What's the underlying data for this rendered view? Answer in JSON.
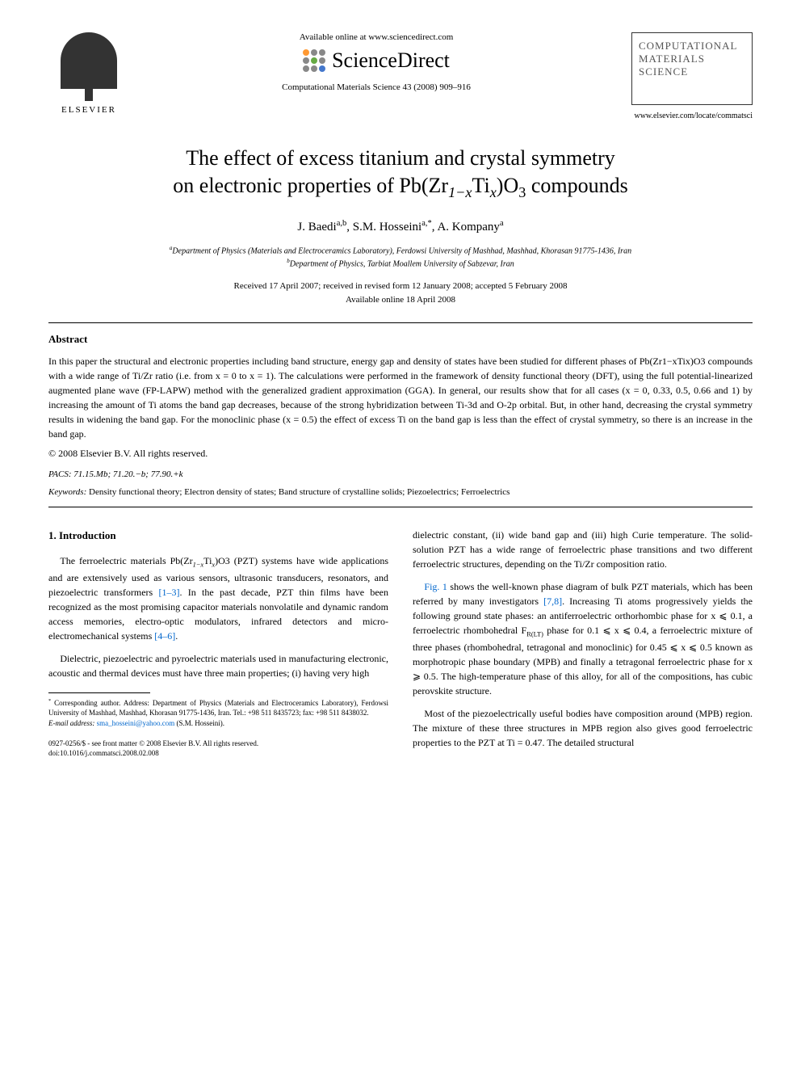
{
  "header": {
    "elsevier": "ELSEVIER",
    "available": "Available online at www.sciencedirect.com",
    "sciencedirect": "ScienceDirect",
    "journal_ref": "Computational Materials Science 43 (2008) 909–916",
    "journal_name_l1": "COMPUTATIONAL",
    "journal_name_l2": "MATERIALS",
    "journal_name_l3": "SCIENCE",
    "journal_url": "www.elsevier.com/locate/commatsci"
  },
  "title_l1": "The effect of excess titanium and crystal symmetry",
  "title_l2_pre": "on electronic properties of Pb(Zr",
  "title_l2_sub1": "1−x",
  "title_l2_mid": "Ti",
  "title_l2_sub2": "x",
  "title_l2_post": ")O",
  "title_l2_sub3": "3",
  "title_l2_end": " compounds",
  "authors": {
    "a1": "J. Baedi",
    "a1_sup": "a,b",
    "a2": "S.M. Hosseini",
    "a2_sup": "a,*",
    "a3": "A. Kompany",
    "a3_sup": "a"
  },
  "affiliations": {
    "a": "Department of Physics (Materials and Electroceramics Laboratory), Ferdowsi University of Mashhad, Mashhad, Khorasan 91775-1436, Iran",
    "b": "Department of Physics, Tarbiat Moallem University of Sabzevar, Iran"
  },
  "dates": {
    "received": "Received 17 April 2007; received in revised form 12 January 2008; accepted 5 February 2008",
    "available": "Available online 18 April 2008"
  },
  "abstract": {
    "heading": "Abstract",
    "text": "In this paper the structural and electronic properties including band structure, energy gap and density of states have been studied for different phases of Pb(Zr1−xTix)O3 compounds with a wide range of Ti/Zr ratio (i.e. from x = 0 to x = 1). The calculations were performed in the framework of density functional theory (DFT), using the full potential-linearized augmented plane wave (FP-LAPW) method with the generalized gradient approximation (GGA). In general, our results show that for all cases (x = 0, 0.33, 0.5, 0.66 and 1) by increasing the amount of Ti atoms the band gap decreases, because of the strong hybridization between Ti-3d and O-2p orbital. But, in other hand, decreasing the crystal symmetry results in widening the band gap. For the monoclinic phase (x = 0.5) the effect of excess Ti on the band gap is less than the effect of crystal symmetry, so there is an increase in the band gap.",
    "copyright": "© 2008 Elsevier B.V. All rights reserved."
  },
  "pacs": {
    "label": "PACS:",
    "codes": "71.15.Mb; 71.20.−b; 77.90.+k"
  },
  "keywords": {
    "label": "Keywords:",
    "text": "Density functional theory; Electron density of states; Band structure of crystalline solids; Piezoelectrics; Ferroelectrics"
  },
  "intro": {
    "heading": "1. Introduction",
    "p1_pre": "The ferroelectric materials Pb(Zr",
    "p1_post": ")O3 (PZT) systems have wide applications and are extensively used as various sensors, ultrasonic transducers, resonators, and piezoelectric transformers ",
    "p1_ref": "[1–3]",
    "p1_cont": ". In the past decade, PZT thin films have been recognized as the most promising capacitor materials nonvolatile and dynamic random access memories, electro-optic modulators, infrared detectors and micro-electromechanical systems ",
    "p1_ref2": "[4–6]",
    "p1_end": ".",
    "p2": "Dielectric, piezoelectric and pyroelectric materials used in manufacturing electronic, acoustic and thermal devices must have three main properties; (i) having very high",
    "col2_p1": "dielectric constant, (ii) wide band gap and (iii) high Curie temperature. The solid-solution PZT has a wide range of ferroelectric phase transitions and two different ferroelectric structures, depending on the Ti/Zr composition ratio.",
    "col2_p2_ref": "Fig. 1",
    "col2_p2_a": " shows the well-known phase diagram of bulk PZT materials, which has been referred by many investigators ",
    "col2_p2_ref2": "[7,8]",
    "col2_p2_b": ". Increasing Ti atoms progressively yields the following ground state phases: an antiferroelectric orthorhombic phase for x ⩽ 0.1, a ferroelectric rhombohedral F",
    "col2_p2_sub": "R(LT)",
    "col2_p2_c": " phase for 0.1 ⩽ x ⩽ 0.4, a ferroelectric mixture of three phases (rhombohedral, tetragonal and monoclinic) for 0.45 ⩽ x ⩽ 0.5 known as morphotropic phase boundary (MPB) and finally a tetragonal ferroelectric phase for x ⩾ 0.5. The high-temperature phase of this alloy, for all of the compositions, has cubic perovskite structure.",
    "col2_p3": "Most of the piezoelectrically useful bodies have composition around (MPB) region. The mixture of these three structures in MPB region also gives good ferroelectric properties to the PZT at Ti = 0.47. The detailed structural"
  },
  "footnote": {
    "corr": "Corresponding author. Address: Department of Physics (Materials and Electroceramics Laboratory), Ferdowsi University of Mashhad, Mashhad, Khorasan 91775-1436, Iran. Tel.: +98 511 8435723; fax: +98 511 8438032.",
    "email_label": "E-mail address:",
    "email": "sma_hosseini@yahoo.com",
    "email_who": "(S.M. Hosseini)."
  },
  "footer": {
    "line1": "0927-0256/$ - see front matter © 2008 Elsevier B.V. All rights reserved.",
    "line2": "doi:10.1016/j.commatsci.2008.02.008"
  }
}
